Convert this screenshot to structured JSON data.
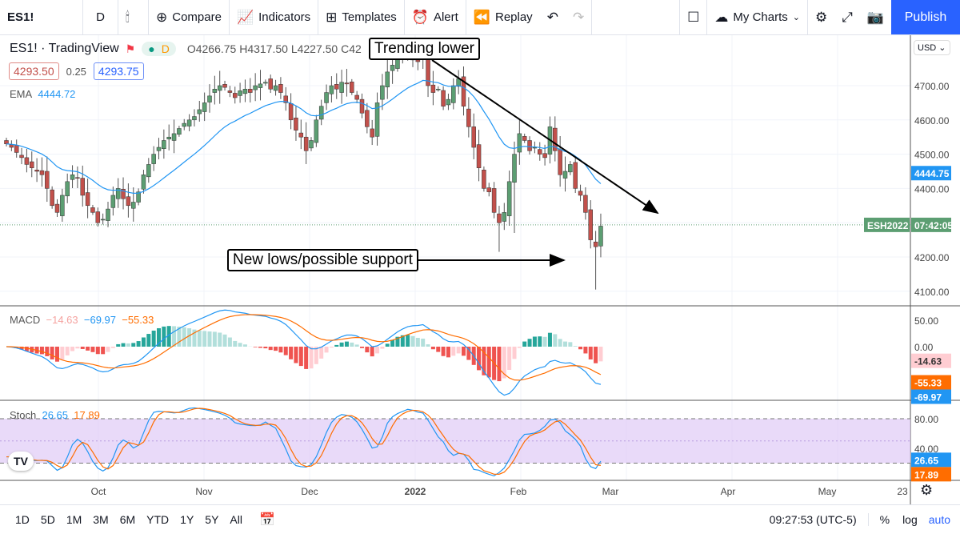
{
  "toolbar": {
    "symbol": "ES1!",
    "interval": "D",
    "compare": "Compare",
    "indicators": "Indicators",
    "templates": "Templates",
    "alert": "Alert",
    "replay": "Replay",
    "my_charts": "My Charts",
    "publish": "Publish"
  },
  "legend": {
    "title": "ES1! · TradingView",
    "session": "D",
    "ohlc": "O4266.75 H4317.50 L4227.50 C42",
    "bid": "4293.50",
    "spread": "0.25",
    "ask": "4293.75",
    "ema_label": "EMA",
    "ema_value": "4444.72",
    "macd_label": "MACD",
    "macd_hist": "−14.63",
    "macd_line": "−69.97",
    "macd_signal": "−55.33",
    "stoch_label": "Stoch",
    "stoch_k": "26.65",
    "stoch_d": "17.89"
  },
  "annotations": {
    "trend": "Trending lower",
    "support": "New lows/possible support"
  },
  "price_axis": {
    "currency": "USD",
    "ticks": [
      "4700.00",
      "4600.00",
      "4500.00",
      "4400.00",
      "4200.00",
      "4100.00"
    ],
    "ema_tag": "4444.75",
    "symbol_tag": "ESH2022",
    "countdown": "07:42:05"
  },
  "macd_axis": {
    "ticks": [
      "50.00",
      "0.00"
    ],
    "hist_tag": "-14.63",
    "signal_tag": "-55.33",
    "macd_tag": "-69.97"
  },
  "stoch_axis": {
    "ticks": [
      "80.00",
      "40.00"
    ],
    "k_tag": "26.65",
    "d_tag": "17.89"
  },
  "time_axis": {
    "labels": [
      "Oct",
      "Nov",
      "Dec",
      "2022",
      "Feb",
      "Mar",
      "Apr",
      "May",
      "23"
    ]
  },
  "bottom": {
    "ranges": [
      "1D",
      "5D",
      "1M",
      "3M",
      "6M",
      "YTD",
      "1Y",
      "5Y",
      "All"
    ],
    "clock": "09:27:53 (UTC-5)",
    "percent": "%",
    "log": "log",
    "auto": "auto"
  },
  "colors": {
    "up": "#5c9e72",
    "down": "#c2504b",
    "ema": "#2196f3",
    "macd": "#2196f3",
    "signal": "#ff6d00",
    "stoch_band": "#e1cdf7",
    "accent": "#2962ff"
  },
  "chart_data": {
    "type": "candlestick",
    "ylim": [
      4080,
      4830
    ],
    "ema_period": 20,
    "closes": [
      4530,
      4520,
      4505,
      4490,
      4470,
      4460,
      4450,
      4440,
      4400,
      4350,
      4330,
      4380,
      4420,
      4440,
      4430,
      4380,
      4350,
      4330,
      4300,
      4310,
      4340,
      4380,
      4400,
      4370,
      4350,
      4360,
      4390,
      4440,
      4470,
      4500,
      4520,
      4540,
      4550,
      4560,
      4575,
      4590,
      4600,
      4610,
      4630,
      4650,
      4670,
      4690,
      4700,
      4695,
      4680,
      4665,
      4685,
      4690,
      4680,
      4700,
      4705,
      4710,
      4690,
      4700,
      4680,
      4650,
      4600,
      4570,
      4550,
      4510,
      4540,
      4600,
      4640,
      4680,
      4700,
      4690,
      4710,
      4705,
      4680,
      4660,
      4620,
      4580,
      4550,
      4650,
      4700,
      4740,
      4760,
      4780,
      4785,
      4790,
      4775,
      4770,
      4790,
      4700,
      4680,
      4690,
      4640,
      4660,
      4700,
      4720,
      4640,
      4580,
      4520,
      4460,
      4400,
      4390,
      4330,
      4300,
      4330,
      4420,
      4500,
      4560,
      4540,
      4510,
      4520,
      4500,
      4490,
      4580,
      4510,
      4440,
      4450,
      4470,
      4400,
      4380,
      4330,
      4250,
      4230,
      4290
    ]
  }
}
